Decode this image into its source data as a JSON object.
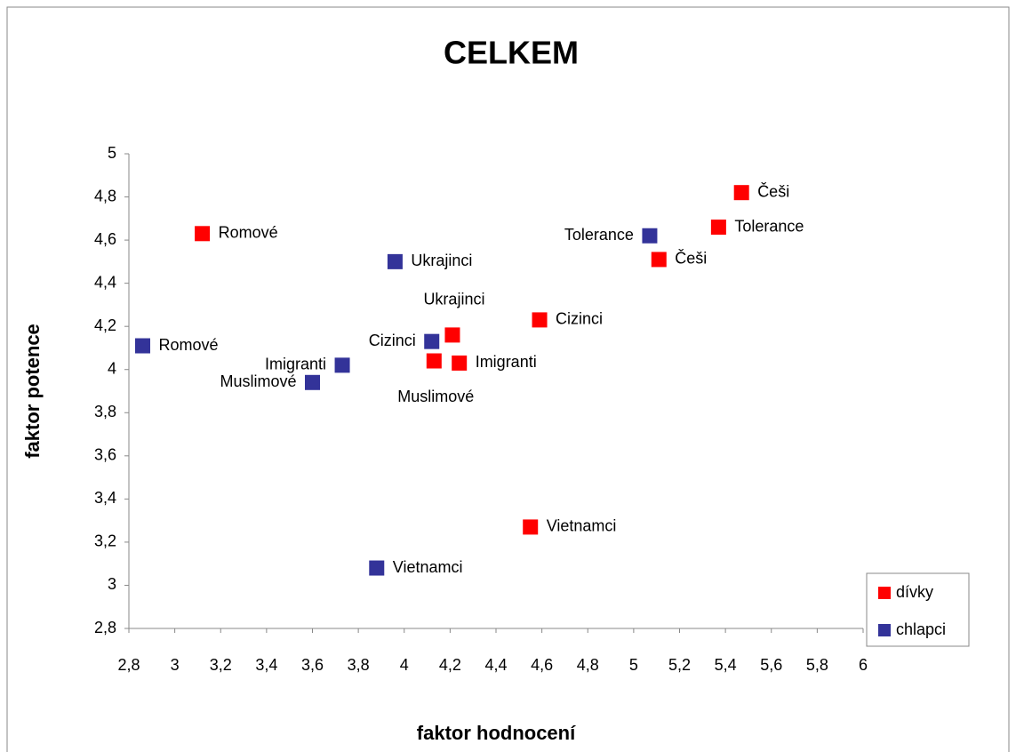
{
  "chart_data": {
    "type": "scatter",
    "title": "CELKEM",
    "x_label": "faktor hodnocení",
    "y_label": "faktor potence",
    "xlim": [
      2.8,
      6
    ],
    "ylim": [
      2.8,
      5
    ],
    "xticks": [
      {
        "value": 2.8,
        "label": "2,8"
      },
      3,
      {
        "value": 3.2,
        "label": "3,2"
      },
      {
        "value": 3.4,
        "label": "3,4"
      },
      {
        "value": 3.6,
        "label": "3,6"
      },
      {
        "value": 3.8,
        "label": "3,8"
      },
      4,
      {
        "value": 4.2,
        "label": "4,2"
      },
      {
        "value": 4.4,
        "label": "4,4"
      },
      {
        "value": 4.6,
        "label": "4,6"
      },
      {
        "value": 4.8,
        "label": "4,8"
      },
      5,
      {
        "value": 5.2,
        "label": "5,2"
      },
      {
        "value": 5.4,
        "label": "5,4"
      },
      {
        "value": 5.6,
        "label": "5,6"
      },
      {
        "value": 5.8,
        "label": "5,8"
      },
      6
    ],
    "yticks": [
      {
        "value": 2.8,
        "label": "2,8"
      },
      3,
      {
        "value": 3.2,
        "label": "3,2"
      },
      {
        "value": 3.4,
        "label": "3,4"
      },
      {
        "value": 3.6,
        "label": "3,6"
      },
      {
        "value": 3.8,
        "label": "3,8"
      },
      4,
      {
        "value": 4.2,
        "label": "4,2"
      },
      {
        "value": 4.4,
        "label": "4,4"
      },
      {
        "value": 4.6,
        "label": "4,6"
      },
      {
        "value": 4.8,
        "label": "4,8"
      },
      5
    ],
    "grid": false,
    "legend": "lower right",
    "series": [
      {
        "name": "dívky",
        "color": "#ff0000",
        "labels": [
          "Romové",
          "Češi",
          "Tolerance",
          "Češi",
          "Cizinci",
          "Ukrajinci",
          "Muslimové",
          "Imigranti",
          "Vietnamci"
        ],
        "x": [
          3.12,
          5.47,
          5.37,
          5.11,
          4.59,
          4.21,
          4.13,
          4.24,
          4.55
        ],
        "values": [
          4.63,
          4.82,
          4.66,
          4.51,
          4.23,
          4.16,
          4.04,
          4.03,
          3.27
        ]
      },
      {
        "name": "chlapci",
        "color": "#333399",
        "labels": [
          "Romové",
          "Ukrajinci",
          "Tolerance",
          "Cizinci",
          "Imigranti",
          "Muslimové",
          "Vietnamci"
        ],
        "x": [
          2.86,
          3.96,
          5.07,
          4.12,
          3.73,
          3.6,
          3.88
        ],
        "values": [
          4.11,
          4.5,
          4.62,
          4.13,
          4.02,
          3.94,
          3.08
        ]
      }
    ]
  }
}
